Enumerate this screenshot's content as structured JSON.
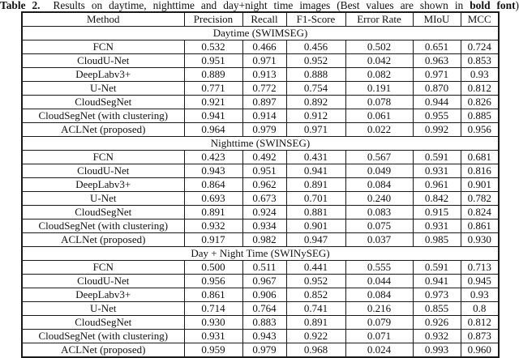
{
  "title": {
    "label": "Table 2.",
    "body": "Results on daytime, nighttime and day+night time images (Best values are shown in",
    "emphasis": "bold font",
    "suffix": ")"
  },
  "table": {
    "columns": [
      "Method",
      "Precision",
      "Recall",
      "F1-Score",
      "Error Rate",
      "MIoU",
      "MCC"
    ],
    "sections": [
      {
        "header": "Daytime (SWIMSEG)",
        "rows": [
          {
            "method": "FCN",
            "values": [
              "0.532",
              "0.466",
              "0.456",
              "0.502",
              "0.651",
              "0.724"
            ],
            "bold": [
              false,
              false,
              false,
              false,
              false,
              false
            ]
          },
          {
            "method": "CloudU-Net",
            "values": [
              "0.951",
              "0.971",
              "0.952",
              "0.042",
              "0.963",
              "0.853"
            ],
            "bold": [
              false,
              false,
              false,
              false,
              false,
              false
            ]
          },
          {
            "method": "DeepLabv3+",
            "values": [
              "0.889",
              "0.913",
              "0.888",
              "0.082",
              "0.971",
              "0.93"
            ],
            "bold": [
              false,
              false,
              false,
              false,
              false,
              false
            ]
          },
          {
            "method": "U-Net",
            "values": [
              "0.771",
              "0.772",
              "0.754",
              "0.191",
              "0.870",
              "0.812"
            ],
            "bold": [
              false,
              false,
              false,
              false,
              false,
              false
            ]
          },
          {
            "method": "CloudSegNet",
            "values": [
              "0.921",
              "0.897",
              "0.892",
              "0.078",
              "0.944",
              "0.826"
            ],
            "bold": [
              false,
              false,
              false,
              false,
              false,
              false
            ]
          },
          {
            "method": "CloudSegNet (with clustering)",
            "values": [
              "0.941",
              "0.914",
              "0.912",
              "0.061",
              "0.955",
              "0.885"
            ],
            "bold": [
              false,
              false,
              false,
              false,
              false,
              false
            ]
          },
          {
            "method": "ACLNet (proposed)",
            "values": [
              "0.964",
              "0.979",
              "0.971",
              "0.022",
              "0.992",
              "0.956"
            ],
            "bold": [
              true,
              true,
              true,
              true,
              true,
              true
            ]
          }
        ]
      },
      {
        "header": "Nighttime (SWINSEG)",
        "rows": [
          {
            "method": "FCN",
            "values": [
              "0.423",
              "0.492",
              "0.431",
              "0.567",
              "0.591",
              "0.681"
            ],
            "bold": [
              false,
              false,
              false,
              false,
              false,
              false
            ]
          },
          {
            "method": "CloudU-Net",
            "values": [
              "0.943",
              "0.951",
              "0.941",
              "0.049",
              "0.931",
              "0.816"
            ],
            "bold": [
              true,
              false,
              false,
              false,
              false,
              false
            ]
          },
          {
            "method": "DeepLabv3+",
            "values": [
              "0.864",
              "0.962",
              "0.891",
              "0.084",
              "0.961",
              "0.901"
            ],
            "bold": [
              false,
              false,
              false,
              false,
              false,
              false
            ]
          },
          {
            "method": "U-Net",
            "values": [
              "0.693",
              "0.673",
              "0.701",
              "0.240",
              "0.842",
              "0.782"
            ],
            "bold": [
              false,
              false,
              false,
              false,
              false,
              false
            ]
          },
          {
            "method": "CloudSegNet",
            "values": [
              "0.891",
              "0.924",
              "0.881",
              "0.083",
              "0.915",
              "0.824"
            ],
            "bold": [
              false,
              false,
              false,
              false,
              false,
              false
            ]
          },
          {
            "method": "CloudSegNet (with clustering)",
            "values": [
              "0.932",
              "0.934",
              "0.901",
              "0.075",
              "0.931",
              "0.861"
            ],
            "bold": [
              false,
              false,
              false,
              false,
              false,
              false
            ]
          },
          {
            "method": "ACLNet (proposed)",
            "values": [
              "0.917",
              "0.982",
              "0.947",
              "0.037",
              "0.985",
              "0.930"
            ],
            "bold": [
              false,
              true,
              true,
              true,
              true,
              true
            ]
          }
        ]
      },
      {
        "header": "Day + Night Time (SWINySEG)",
        "rows": [
          {
            "method": "FCN",
            "values": [
              "0.500",
              "0.511",
              "0.441",
              "0.555",
              "0.591",
              "0.713"
            ],
            "bold": [
              false,
              false,
              false,
              false,
              false,
              false
            ]
          },
          {
            "method": "CloudU-Net",
            "values": [
              "0.956",
              "0.967",
              "0.952",
              "0.044",
              "0.941",
              "0.945"
            ],
            "bold": [
              false,
              false,
              false,
              false,
              false,
              false
            ]
          },
          {
            "method": "DeepLabv3+",
            "values": [
              "0.861",
              "0.906",
              "0.852",
              "0.084",
              "0.973",
              "0.93"
            ],
            "bold": [
              false,
              false,
              false,
              false,
              false,
              false
            ]
          },
          {
            "method": "U-Net",
            "values": [
              "0.714",
              "0.764",
              "0.741",
              "0.216",
              "0.855",
              "0.8"
            ],
            "bold": [
              false,
              false,
              false,
              false,
              false,
              false
            ]
          },
          {
            "method": "CloudSegNet",
            "values": [
              "0.930",
              "0.883",
              "0.891",
              "0.079",
              "0.926",
              "0.812"
            ],
            "bold": [
              false,
              false,
              false,
              false,
              false,
              false
            ]
          },
          {
            "method": "CloudSegNet (with clustering)",
            "values": [
              "0.931",
              "0.943",
              "0.922",
              "0.071",
              "0.932",
              "0.873"
            ],
            "bold": [
              false,
              false,
              false,
              false,
              false,
              false
            ]
          },
          {
            "method": "ACLNet (proposed)",
            "values": [
              "0.959",
              "0.979",
              "0.968",
              "0.024",
              "0.993",
              "0.960"
            ],
            "bold": [
              true,
              true,
              true,
              true,
              true,
              true
            ]
          }
        ]
      }
    ]
  }
}
